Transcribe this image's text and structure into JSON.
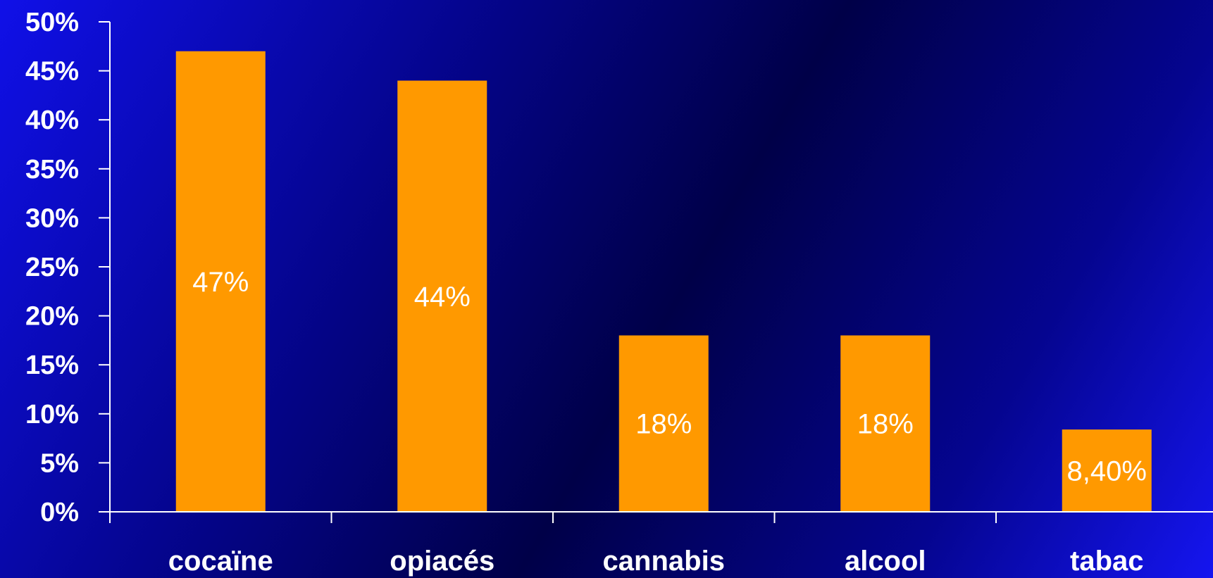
{
  "chart_data": {
    "type": "bar",
    "categories": [
      "cocaïne",
      "opiacés",
      "cannabis",
      "alcool",
      "tabac"
    ],
    "values": [
      47,
      44,
      18,
      18,
      8.4
    ],
    "data_labels": [
      "47%",
      "44%",
      "18%",
      "18%",
      "8,40%"
    ],
    "title": "",
    "xlabel": "",
    "ylabel": "",
    "ylim": [
      0,
      50
    ],
    "y_ticks": [
      0,
      5,
      10,
      15,
      20,
      25,
      30,
      35,
      40,
      45,
      50
    ],
    "y_tick_labels": [
      "0%",
      "5%",
      "10%",
      "15%",
      "20%",
      "25%",
      "30%",
      "35%",
      "40%",
      "45%",
      "50%"
    ],
    "grid": false,
    "legend": "none",
    "bar_color": "#FF9900",
    "axis_color": "#FFFFFF",
    "background_colors": [
      "#1010E8",
      "#000048"
    ]
  }
}
